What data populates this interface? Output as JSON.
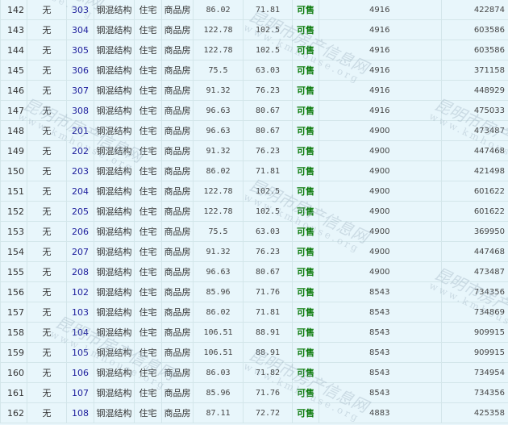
{
  "watermark": {
    "cn": "昆明市房产信息网",
    "en": "www.kmhouse.org"
  },
  "rows": [
    {
      "idx": "142",
      "mortgage": "无",
      "room": "303",
      "structure": "钢混结构",
      "usage": "住宅",
      "type": "商品房",
      "area": "86.02",
      "inner_area": "71.81",
      "status": "可售",
      "price": "4916",
      "total": "422874"
    },
    {
      "idx": "143",
      "mortgage": "无",
      "room": "304",
      "structure": "钢混结构",
      "usage": "住宅",
      "type": "商品房",
      "area": "122.78",
      "inner_area": "102.5",
      "status": "可售",
      "price": "4916",
      "total": "603586"
    },
    {
      "idx": "144",
      "mortgage": "无",
      "room": "305",
      "structure": "钢混结构",
      "usage": "住宅",
      "type": "商品房",
      "area": "122.78",
      "inner_area": "102.5",
      "status": "可售",
      "price": "4916",
      "total": "603586"
    },
    {
      "idx": "145",
      "mortgage": "无",
      "room": "306",
      "structure": "钢混结构",
      "usage": "住宅",
      "type": "商品房",
      "area": "75.5",
      "inner_area": "63.03",
      "status": "可售",
      "price": "4916",
      "total": "371158"
    },
    {
      "idx": "146",
      "mortgage": "无",
      "room": "307",
      "structure": "钢混结构",
      "usage": "住宅",
      "type": "商品房",
      "area": "91.32",
      "inner_area": "76.23",
      "status": "可售",
      "price": "4916",
      "total": "448929"
    },
    {
      "idx": "147",
      "mortgage": "无",
      "room": "308",
      "structure": "钢混结构",
      "usage": "住宅",
      "type": "商品房",
      "area": "96.63",
      "inner_area": "80.67",
      "status": "可售",
      "price": "4916",
      "total": "475033"
    },
    {
      "idx": "148",
      "mortgage": "无",
      "room": "201",
      "structure": "钢混结构",
      "usage": "住宅",
      "type": "商品房",
      "area": "96.63",
      "inner_area": "80.67",
      "status": "可售",
      "price": "4900",
      "total": "473487"
    },
    {
      "idx": "149",
      "mortgage": "无",
      "room": "202",
      "structure": "钢混结构",
      "usage": "住宅",
      "type": "商品房",
      "area": "91.32",
      "inner_area": "76.23",
      "status": "可售",
      "price": "4900",
      "total": "447468"
    },
    {
      "idx": "150",
      "mortgage": "无",
      "room": "203",
      "structure": "钢混结构",
      "usage": "住宅",
      "type": "商品房",
      "area": "86.02",
      "inner_area": "71.81",
      "status": "可售",
      "price": "4900",
      "total": "421498"
    },
    {
      "idx": "151",
      "mortgage": "无",
      "room": "204",
      "structure": "钢混结构",
      "usage": "住宅",
      "type": "商品房",
      "area": "122.78",
      "inner_area": "102.5",
      "status": "可售",
      "price": "4900",
      "total": "601622"
    },
    {
      "idx": "152",
      "mortgage": "无",
      "room": "205",
      "structure": "钢混结构",
      "usage": "住宅",
      "type": "商品房",
      "area": "122.78",
      "inner_area": "102.5",
      "status": "可售",
      "price": "4900",
      "total": "601622"
    },
    {
      "idx": "153",
      "mortgage": "无",
      "room": "206",
      "structure": "钢混结构",
      "usage": "住宅",
      "type": "商品房",
      "area": "75.5",
      "inner_area": "63.03",
      "status": "可售",
      "price": "4900",
      "total": "369950"
    },
    {
      "idx": "154",
      "mortgage": "无",
      "room": "207",
      "structure": "钢混结构",
      "usage": "住宅",
      "type": "商品房",
      "area": "91.32",
      "inner_area": "76.23",
      "status": "可售",
      "price": "4900",
      "total": "447468"
    },
    {
      "idx": "155",
      "mortgage": "无",
      "room": "208",
      "structure": "钢混结构",
      "usage": "住宅",
      "type": "商品房",
      "area": "96.63",
      "inner_area": "80.67",
      "status": "可售",
      "price": "4900",
      "total": "473487"
    },
    {
      "idx": "156",
      "mortgage": "无",
      "room": "102",
      "structure": "钢混结构",
      "usage": "住宅",
      "type": "商品房",
      "area": "85.96",
      "inner_area": "71.76",
      "status": "可售",
      "price": "8543",
      "total": "734356"
    },
    {
      "idx": "157",
      "mortgage": "无",
      "room": "103",
      "structure": "钢混结构",
      "usage": "住宅",
      "type": "商品房",
      "area": "86.02",
      "inner_area": "71.81",
      "status": "可售",
      "price": "8543",
      "total": "734869"
    },
    {
      "idx": "158",
      "mortgage": "无",
      "room": "104",
      "structure": "钢混结构",
      "usage": "住宅",
      "type": "商品房",
      "area": "106.51",
      "inner_area": "88.91",
      "status": "可售",
      "price": "8543",
      "total": "909915"
    },
    {
      "idx": "159",
      "mortgage": "无",
      "room": "105",
      "structure": "钢混结构",
      "usage": "住宅",
      "type": "商品房",
      "area": "106.51",
      "inner_area": "88.91",
      "status": "可售",
      "price": "8543",
      "total": "909915"
    },
    {
      "idx": "160",
      "mortgage": "无",
      "room": "106",
      "structure": "钢混结构",
      "usage": "住宅",
      "type": "商品房",
      "area": "86.03",
      "inner_area": "71.82",
      "status": "可售",
      "price": "8543",
      "total": "734954"
    },
    {
      "idx": "161",
      "mortgage": "无",
      "room": "107",
      "structure": "钢混结构",
      "usage": "住宅",
      "type": "商品房",
      "area": "85.96",
      "inner_area": "71.76",
      "status": "可售",
      "price": "8543",
      "total": "734356"
    },
    {
      "idx": "162",
      "mortgage": "无",
      "room": "108",
      "structure": "钢混结构",
      "usage": "住宅",
      "type": "商品房",
      "area": "87.11",
      "inner_area": "72.72",
      "status": "可售",
      "price": "4883",
      "total": "425358"
    }
  ]
}
